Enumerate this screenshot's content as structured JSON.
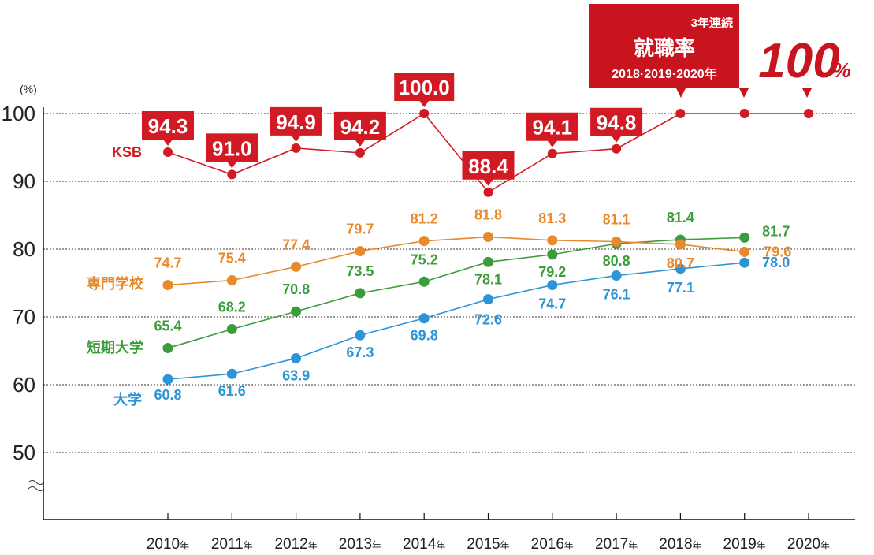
{
  "chart_data": {
    "type": "line",
    "unit_label": "(%)",
    "categories": [
      "2010",
      "2011",
      "2012",
      "2013",
      "2014",
      "2015",
      "2016",
      "2017",
      "2018",
      "2019",
      "2020"
    ],
    "x_suffix": "年",
    "y_ticks": [
      "100",
      "90",
      "80",
      "70",
      "60",
      "50"
    ],
    "ylim": [
      40,
      100
    ],
    "series": [
      {
        "name": "KSB",
        "color": "#d11a23",
        "values": [
          94.3,
          91.0,
          94.9,
          94.2,
          100.0,
          88.4,
          94.1,
          94.8,
          100,
          100,
          100
        ],
        "labels": [
          "94.3",
          "91.0",
          "94.9",
          "94.2",
          "100.0",
          "88.4",
          "94.1",
          "94.8",
          "",
          "",
          ""
        ]
      },
      {
        "name": "専門学校",
        "color": "#e8892b",
        "values": [
          74.7,
          75.4,
          77.4,
          79.7,
          81.2,
          81.8,
          81.3,
          81.1,
          80.7,
          79.6,
          null
        ],
        "labels": [
          "74.7",
          "75.4",
          "77.4",
          "79.7",
          "81.2",
          "81.8",
          "81.3",
          "81.1",
          "80.7",
          "79.6",
          ""
        ]
      },
      {
        "name": "短期大学",
        "color": "#3a9c3a",
        "values": [
          65.4,
          68.2,
          70.8,
          73.5,
          75.2,
          78.1,
          79.2,
          80.8,
          81.4,
          81.7,
          null
        ],
        "labels": [
          "65.4",
          "68.2",
          "70.8",
          "73.5",
          "75.2",
          "78.1",
          "79.2",
          "80.8",
          "81.4",
          "81.7",
          ""
        ]
      },
      {
        "name": "大学",
        "color": "#2b95d6",
        "values": [
          60.8,
          61.6,
          63.9,
          67.3,
          69.8,
          72.6,
          74.7,
          76.1,
          77.1,
          78.0,
          null
        ],
        "labels": [
          "60.8",
          "61.6",
          "63.9",
          "67.3",
          "69.8",
          "72.6",
          "74.7",
          "76.1",
          "77.1",
          "78.0",
          ""
        ]
      }
    ],
    "badge": {
      "line1": "3年連続",
      "line2": "就職率",
      "line3": "2018·2019·2020年",
      "big": "100",
      "pct": "%"
    }
  }
}
